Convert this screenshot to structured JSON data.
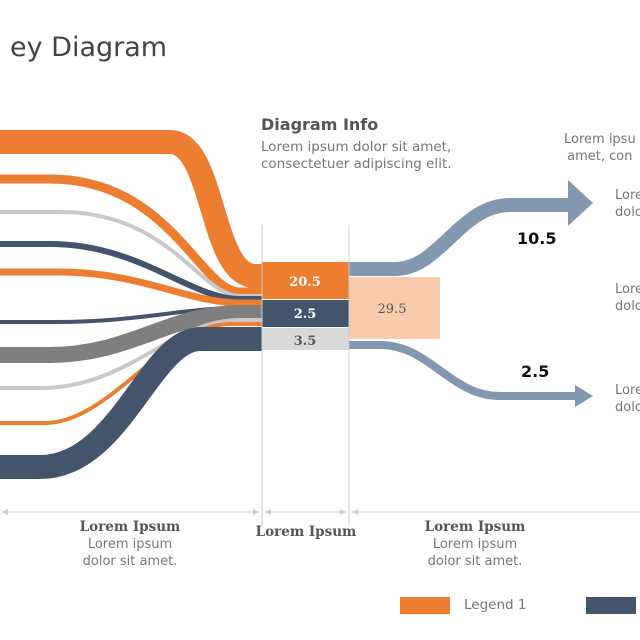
{
  "title": "ey Diagram",
  "info": {
    "heading": "Diagram Info",
    "body": [
      "Lorem ipsum dolor sit amet,",
      "consectetuer adipiscing elit."
    ]
  },
  "nodes": {
    "col1": [
      "20.5",
      "2.5",
      "3.5"
    ],
    "col2": "29.5"
  },
  "outputs": {
    "top_value": "10.5",
    "bottom_value": "2.5"
  },
  "right_texts": {
    "header": [
      "Lorem ipsu",
      "amet, con"
    ],
    "items": [
      [
        "Lore",
        "dolo"
      ],
      [
        "Lore",
        "dolo"
      ],
      [
        "Lore",
        "dolo"
      ]
    ]
  },
  "sections": [
    {
      "title": "Lorem Ipsum",
      "body": [
        "Lorem ipsum",
        "dolor sit amet."
      ]
    },
    {
      "title": "Lorem Ipsum"
    },
    {
      "title": "Lorem Ipsum",
      "body": [
        "Lorem ipsum",
        "dolor sit amet."
      ]
    }
  ],
  "legend": [
    {
      "label": "Legend 1",
      "color": "#ED7D31"
    },
    {
      "label": "",
      "color": "#44546A"
    }
  ],
  "colors": {
    "orange": "#ED7D31",
    "navy": "#44546A",
    "gray": "#7F7F7F",
    "lightgray": "#C8C8C8",
    "blue": "#8497B0",
    "peach": "#F8CBAD"
  }
}
